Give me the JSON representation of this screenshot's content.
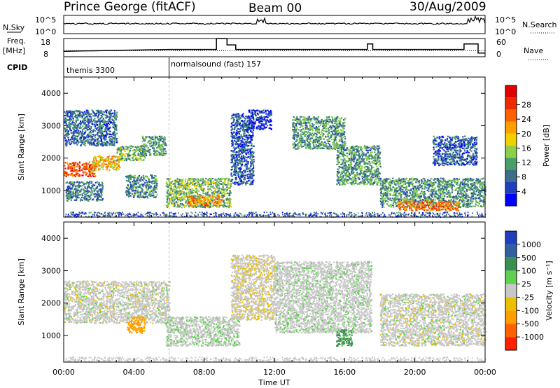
{
  "header": {
    "station": "Prince George (fitACF)",
    "beam": "Beam 00",
    "date": "30/Aug/2009"
  },
  "top_panels": {
    "nsky_label": "N.Sky",
    "nsearch_label": "N.Search",
    "noise_ticks": [
      "10^5",
      "10^0"
    ],
    "freq_label_1": "Freq.",
    "freq_label_2": "[MHz]",
    "freq_ticks": [
      "18",
      "8"
    ],
    "nave_label": "Nave",
    "nave_ticks": [
      "60",
      "0"
    ],
    "cpid_label": "CPID",
    "cpid_segments": [
      {
        "text": "themis 3300",
        "start_hour": 0
      },
      {
        "text": "normalsound (fast) 157",
        "start_hour": 6
      }
    ]
  },
  "axes": {
    "ylabel": "Slant Range [km]",
    "yticks": [
      "1000",
      "2000",
      "3000",
      "4000"
    ],
    "xticks": [
      "00:00",
      "04:00",
      "08:00",
      "12:00",
      "16:00",
      "20:00",
      "00:00"
    ],
    "xlabel": "Time UT"
  },
  "power_colorbar": {
    "label": "Power [dB]",
    "ticks": [
      "4",
      "8",
      "12",
      "16",
      "20",
      "24",
      "28"
    ],
    "colors": [
      "#0000ff",
      "#1f3fbf",
      "#3a6e8a",
      "#4a9e6a",
      "#8ccf4a",
      "#f0d000",
      "#ffa000",
      "#ff6000",
      "#ee2a00",
      "#e00000"
    ]
  },
  "velocity_colorbar": {
    "label": "Velocity [m s⁻¹]",
    "ticks": [
      "1000",
      "500",
      "100",
      "25",
      "-25",
      "-100",
      "-500",
      "-1000"
    ],
    "colors": [
      "#1f3fbf",
      "#3060a0",
      "#3a9050",
      "#60d050",
      "#c8c8c8",
      "#e8c000",
      "#ffa000",
      "#ff6000",
      "#ff2000"
    ]
  },
  "chart_data": {
    "type": "heatmap",
    "x_range_hours": [
      0,
      24
    ],
    "y_range_km": [
      180,
      4500
    ],
    "power_regions": [
      {
        "t0": 0.0,
        "t1": 1.8,
        "r0": 1450,
        "r1": 1900,
        "power": 26
      },
      {
        "t0": 1.6,
        "t1": 3.2,
        "r0": 1650,
        "r1": 2100,
        "power": 20
      },
      {
        "t0": 3.0,
        "t1": 4.6,
        "r0": 1950,
        "r1": 2400,
        "power": 14
      },
      {
        "t0": 4.4,
        "t1": 5.8,
        "r0": 2100,
        "r1": 2700,
        "power": 12
      },
      {
        "t0": 0.0,
        "t1": 3.0,
        "r0": 2400,
        "r1": 3500,
        "power": 9
      },
      {
        "t0": 0.1,
        "t1": 2.2,
        "r0": 700,
        "r1": 1300,
        "power": 10
      },
      {
        "t0": 3.5,
        "t1": 5.3,
        "r0": 800,
        "r1": 1500,
        "power": 11
      },
      {
        "t0": 5.8,
        "t1": 9.5,
        "r0": 500,
        "r1": 1400,
        "power": 14
      },
      {
        "t0": 7.0,
        "t1": 9.0,
        "r0": 550,
        "r1": 850,
        "power": 22
      },
      {
        "t0": 9.5,
        "t1": 10.8,
        "r0": 1200,
        "r1": 3400,
        "power": 8
      },
      {
        "t0": 10.5,
        "t1": 11.8,
        "r0": 2900,
        "r1": 3500,
        "power": 6
      },
      {
        "t0": 13.0,
        "t1": 16.0,
        "r0": 2300,
        "r1": 3300,
        "power": 12
      },
      {
        "t0": 15.5,
        "t1": 18.0,
        "r0": 1200,
        "r1": 2400,
        "power": 12
      },
      {
        "t0": 18.0,
        "t1": 24.0,
        "r0": 500,
        "r1": 1400,
        "power": 12
      },
      {
        "t0": 19.0,
        "t1": 22.5,
        "r0": 400,
        "r1": 700,
        "power": 24
      },
      {
        "t0": 21.0,
        "t1": 23.5,
        "r0": 1800,
        "r1": 2700,
        "power": 8
      }
    ],
    "velocity_regions": [
      {
        "t0": 0.0,
        "t1": 6.0,
        "r0": 1400,
        "r1": 2700,
        "velocity": 0
      },
      {
        "t0": 3.6,
        "t1": 4.6,
        "r0": 1100,
        "r1": 1600,
        "velocity": -200
      },
      {
        "t0": 5.8,
        "t1": 10.0,
        "r0": 700,
        "r1": 1600,
        "velocity": 10
      },
      {
        "t0": 9.5,
        "t1": 12.0,
        "r0": 1500,
        "r1": 3500,
        "velocity": -10
      },
      {
        "t0": 12.0,
        "t1": 17.5,
        "r0": 1100,
        "r1": 3300,
        "velocity": 5
      },
      {
        "t0": 15.5,
        "t1": 16.4,
        "r0": 700,
        "r1": 1200,
        "velocity": 120
      },
      {
        "t0": 18.0,
        "t1": 24.0,
        "r0": 700,
        "r1": 2300,
        "velocity": 0
      }
    ],
    "nsky_baseline": 0.55,
    "frequency_mhz": [
      {
        "t": 0,
        "v": 11
      },
      {
        "t": 6,
        "v": 12
      },
      {
        "t": 8.7,
        "v": 12
      },
      {
        "t": 8.7,
        "v": 18
      },
      {
        "t": 9.3,
        "v": 18
      },
      {
        "t": 9.3,
        "v": 14.5
      },
      {
        "t": 9.8,
        "v": 14.5
      },
      {
        "t": 9.8,
        "v": 12
      },
      {
        "t": 17.3,
        "v": 12
      },
      {
        "t": 17.3,
        "v": 15
      },
      {
        "t": 17.6,
        "v": 15
      },
      {
        "t": 17.6,
        "v": 12
      },
      {
        "t": 22.8,
        "v": 12
      },
      {
        "t": 22.8,
        "v": 15
      },
      {
        "t": 23.6,
        "v": 15
      },
      {
        "t": 23.6,
        "v": 10
      },
      {
        "t": 24,
        "v": 10
      }
    ],
    "nave_level": 20
  }
}
